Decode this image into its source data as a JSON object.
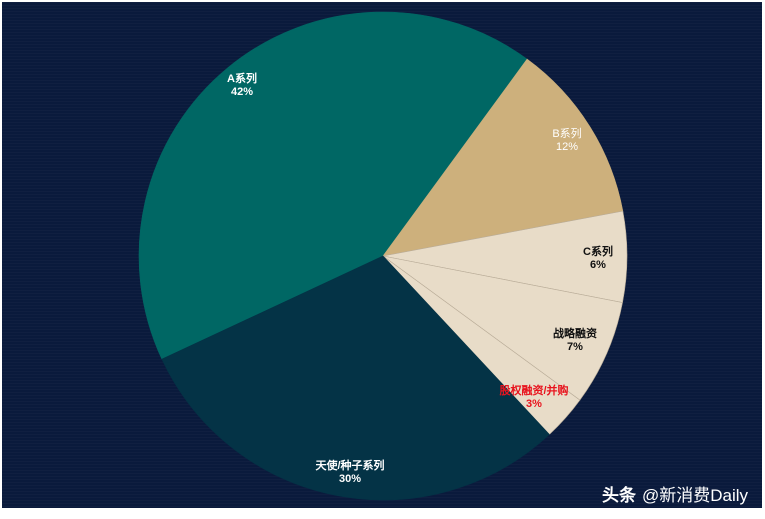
{
  "chart_data": {
    "type": "pie",
    "title": "",
    "categories": [
      "A系列",
      "B系列",
      "C系列",
      "战略融资",
      "股权融资/并购",
      "天使/种子系列"
    ],
    "values": [
      42,
      12,
      6,
      7,
      3,
      30
    ],
    "unit": "%",
    "start_angle_deg_clockwise_from_top": 245,
    "colors": [
      "#006764",
      "#cdb07c",
      "#e8dcc8",
      "#e8dcc8",
      "#e8dcc8",
      "#043346"
    ],
    "label_colors": [
      "#ffffff",
      "#ffffff",
      "#111111",
      "#111111",
      "#e8141e",
      "#ffffff"
    ],
    "labels": [
      {
        "name": "A系列",
        "pct": "42%"
      },
      {
        "name": "B系列",
        "pct": "12%"
      },
      {
        "name": "C系列",
        "pct": "6%"
      },
      {
        "name": "战略融资",
        "pct": "7%"
      },
      {
        "name": "股权融资/并购",
        "pct": "3%"
      },
      {
        "name": "天使/种子系列",
        "pct": "30%"
      }
    ],
    "legend": "none"
  },
  "watermark": {
    "platform": "头条",
    "account": "@新消费Daily"
  },
  "style": {
    "background": "#0a1a3c"
  }
}
